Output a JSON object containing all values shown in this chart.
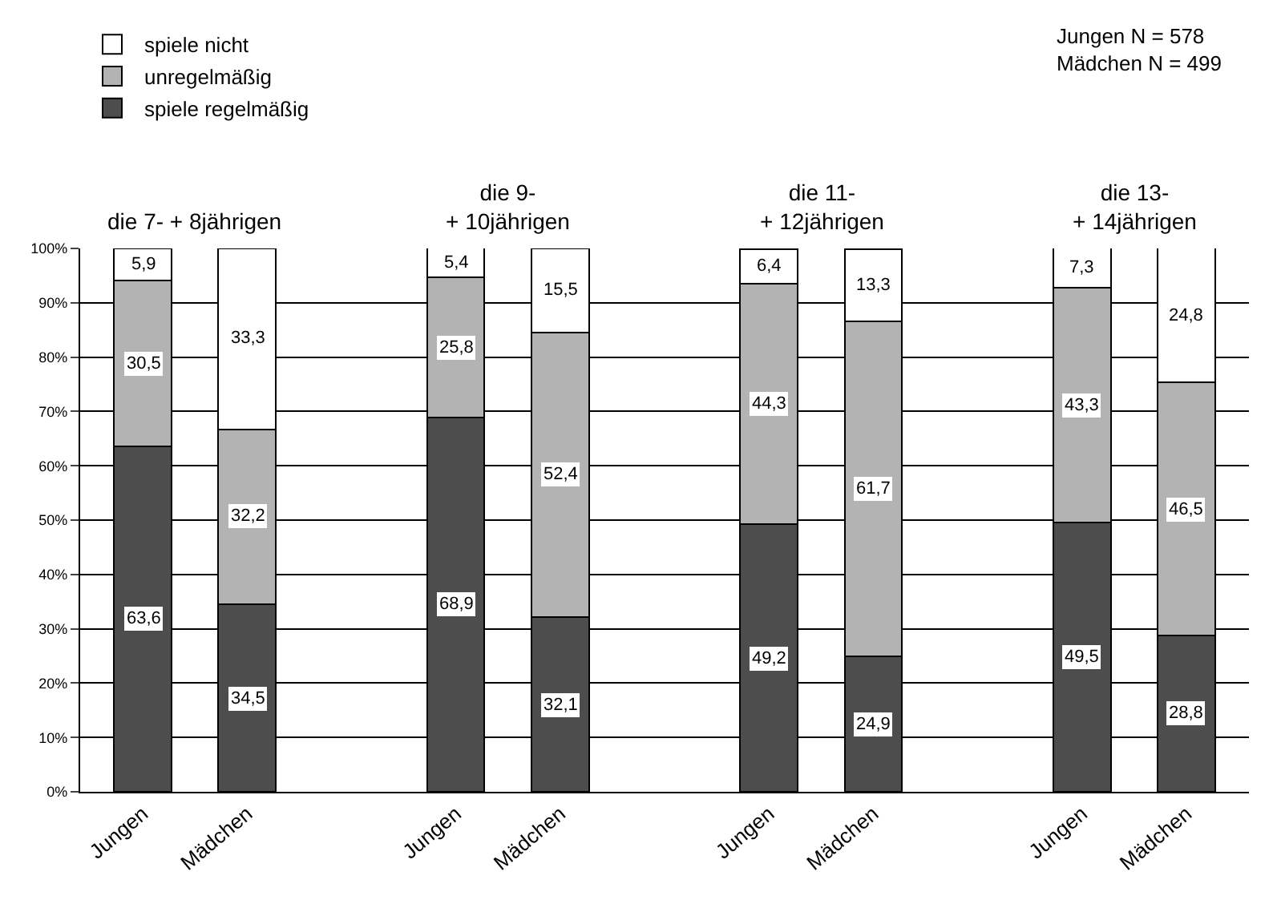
{
  "chart_data": {
    "type": "bar",
    "stacked": true,
    "categories": [
      "Jungen",
      "Mädchen",
      null,
      "Jungen",
      "Mädchen",
      null,
      "Jungen",
      "Mädchen",
      null,
      "Jungen",
      "Mädchen"
    ],
    "series": [
      {
        "name": "spiele regelmäßig",
        "color": "#4d4d4d",
        "values": [
          63.6,
          34.5,
          null,
          68.9,
          32.1,
          null,
          49.2,
          24.9,
          null,
          49.5,
          28.8
        ],
        "value_labels": [
          "63,6",
          "34,5",
          null,
          "68,9",
          "32,1",
          null,
          "49,2",
          "24,9",
          null,
          "49,5",
          "28,8"
        ]
      },
      {
        "name": "unregelmäßig",
        "color": "#b3b3b3",
        "values": [
          30.5,
          32.2,
          null,
          25.8,
          52.4,
          null,
          44.3,
          61.7,
          null,
          43.3,
          46.5
        ],
        "value_labels": [
          "30,5",
          "32,2",
          null,
          "25,8",
          "52,4",
          null,
          "44,3",
          "61,7",
          null,
          "43,3",
          "46,5"
        ]
      },
      {
        "name": "spiele nicht",
        "color": "#ffffff",
        "values": [
          5.9,
          33.3,
          null,
          5.4,
          15.5,
          null,
          6.4,
          13.3,
          null,
          7.3,
          24.8
        ],
        "value_labels": [
          "5,9",
          "33,3",
          null,
          "5,4",
          "15,5",
          null,
          "6,4",
          "13,3",
          null,
          "7,3",
          "24,8"
        ]
      }
    ],
    "ylim": [
      0,
      100
    ],
    "yticks": [
      {
        "value": 0,
        "label": "0%"
      },
      {
        "value": 10,
        "label": "10%"
      },
      {
        "value": 20,
        "label": "20%"
      },
      {
        "value": 30,
        "label": "30%"
      },
      {
        "value": 40,
        "label": "40%"
      },
      {
        "value": 50,
        "label": "50%"
      },
      {
        "value": 60,
        "label": "60%"
      },
      {
        "value": 70,
        "label": "70%"
      },
      {
        "value": 80,
        "label": "80%"
      },
      {
        "value": 90,
        "label": "90%"
      },
      {
        "value": 100,
        "label": "100%"
      }
    ],
    "grid": "y",
    "legend": "top left",
    "annotations": [
      "die 7- + 8jährigen",
      "die 9-\n+ 10jährigen",
      "die 11-\n+ 12jährigen",
      "die 13-\n+ 14jährigen",
      "Jungen N = 578\nMädchen N = 499"
    ]
  }
}
